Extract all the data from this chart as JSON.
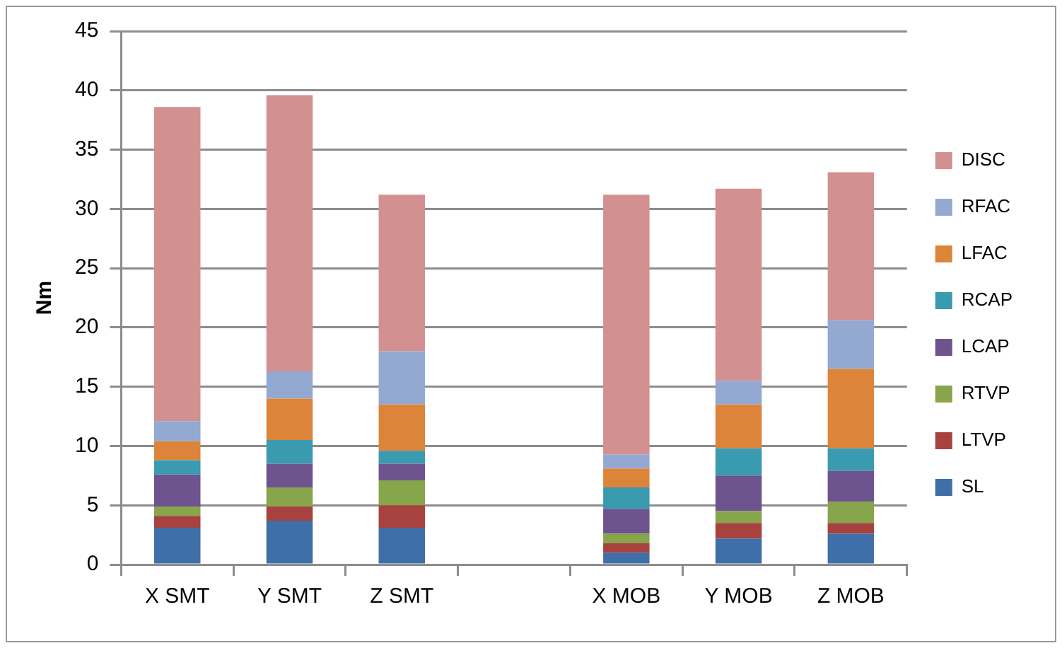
{
  "chart_data": {
    "type": "bar",
    "stacked": true,
    "ylabel": "Nm",
    "categories": [
      "X SMT",
      "Y SMT",
      "Z SMT",
      null,
      "X MOB",
      "Y MOB",
      "Z MOB"
    ],
    "series": [
      {
        "name": "SL",
        "color": "#3f6fa8",
        "values": [
          3.1,
          3.7,
          3.1,
          null,
          1.0,
          2.2,
          2.6
        ]
      },
      {
        "name": "LTVP",
        "color": "#a8423f",
        "values": [
          1.0,
          1.2,
          1.9,
          null,
          0.8,
          1.3,
          0.9
        ]
      },
      {
        "name": "RTVP",
        "color": "#87a54a",
        "values": [
          0.8,
          1.6,
          2.1,
          null,
          0.8,
          1.0,
          1.8
        ]
      },
      {
        "name": "LCAP",
        "color": "#6e548e",
        "values": [
          2.7,
          2.0,
          1.4,
          null,
          2.1,
          3.0,
          2.6
        ]
      },
      {
        "name": "RCAP",
        "color": "#3a9ab0",
        "values": [
          1.2,
          2.0,
          1.1,
          null,
          1.8,
          2.3,
          1.9
        ]
      },
      {
        "name": "LFAC",
        "color": "#dd843b",
        "values": [
          1.6,
          3.5,
          3.9,
          null,
          1.6,
          3.7,
          6.7
        ]
      },
      {
        "name": "RFAC",
        "color": "#93a9d2",
        "values": [
          1.7,
          2.3,
          4.5,
          null,
          1.2,
          2.0,
          4.1
        ]
      },
      {
        "name": "DISC",
        "color": "#d29090",
        "values": [
          26.5,
          23.3,
          13.2,
          null,
          21.9,
          16.2,
          12.5
        ]
      }
    ],
    "ylim": [
      0,
      45
    ],
    "yticks": [
      0,
      5,
      10,
      15,
      20,
      25,
      30,
      35,
      40,
      45
    ],
    "grid": "y",
    "legend": "right"
  }
}
